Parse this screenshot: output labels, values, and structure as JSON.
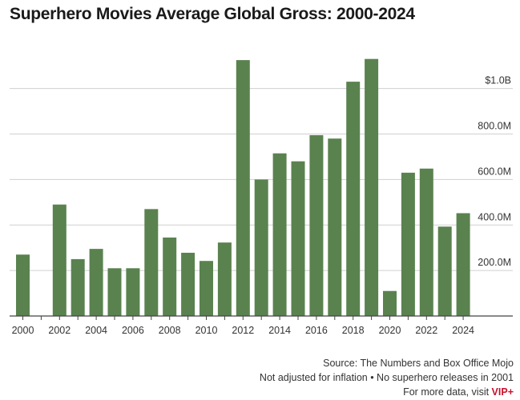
{
  "title": "Superhero Movies Average Global Gross: 2000-2024",
  "footer": {
    "source": "Source: The Numbers and Box Office Mojo",
    "note": "Not adjusted for inflation • No superhero releases in 2001",
    "more": "For more data, visit ",
    "brand": "VIP+"
  },
  "colors": {
    "bar": "#5a824f",
    "grid": "#cfcfcf",
    "axis": "#444444",
    "brand": "#c8102e"
  },
  "chart_data": {
    "type": "bar",
    "title": "Superhero Movies Average Global Gross: 2000-2024",
    "xlabel": "",
    "ylabel": "",
    "categories": [
      "2000",
      "2001",
      "2002",
      "2003",
      "2004",
      "2005",
      "2006",
      "2007",
      "2008",
      "2009",
      "2010",
      "2011",
      "2012",
      "2013",
      "2014",
      "2015",
      "2016",
      "2017",
      "2018",
      "2019",
      "2020",
      "2021",
      "2022",
      "2023",
      "2024"
    ],
    "values": [
      270,
      null,
      490,
      250,
      295,
      210,
      210,
      470,
      345,
      278,
      242,
      323,
      1125,
      600,
      715,
      680,
      795,
      780,
      1030,
      1130,
      110,
      630,
      648,
      393,
      452
    ],
    "unit": "millions USD",
    "ylim": [
      0,
      1150
    ],
    "yticks": [
      200,
      400,
      600,
      800,
      1000
    ],
    "ytick_labels": [
      "200.0M",
      "400.0M",
      "600.0M",
      "800.0M",
      "$1.0B"
    ],
    "xtick_labels": [
      "2000",
      "2002",
      "2004",
      "2006",
      "2008",
      "2010",
      "2012",
      "2014",
      "2016",
      "2018",
      "2020",
      "2022",
      "2024"
    ],
    "grid": true,
    "legend": "none"
  }
}
